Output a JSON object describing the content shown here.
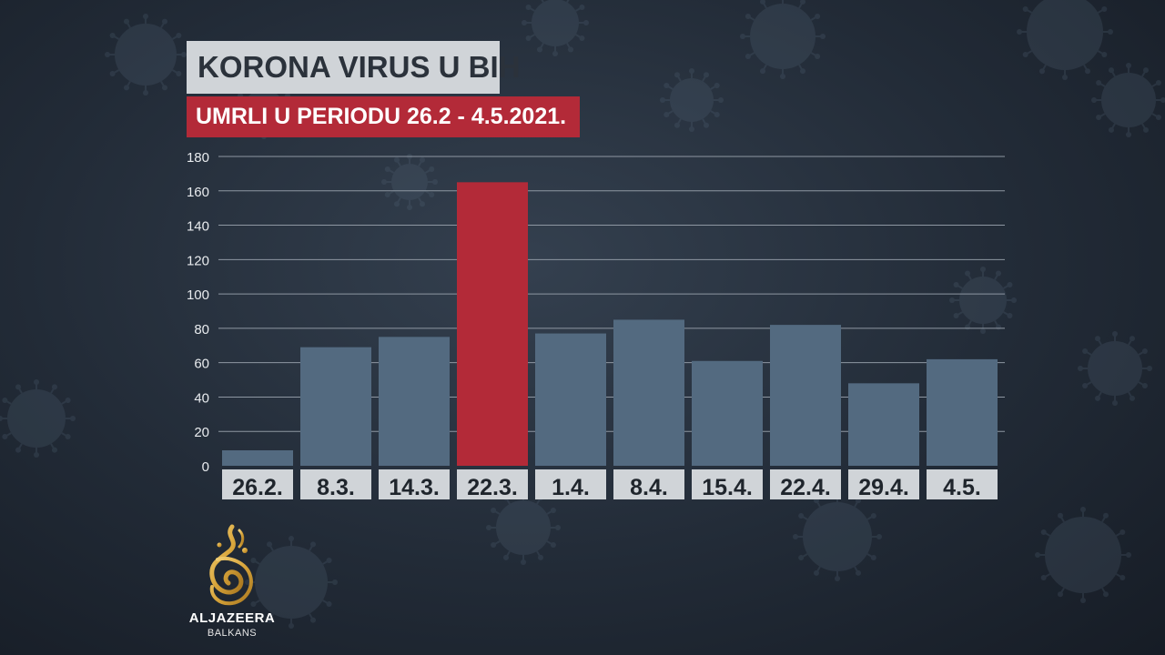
{
  "header": {
    "title": "KORONA VIRUS U BIH",
    "subtitle": "UMRLI U PERIODU 26.2 - 4.5.2021."
  },
  "colors": {
    "bar": "#536a80",
    "highlight": "#b32a38",
    "grid": "#8e97a2",
    "label_bg": "#d0d4d8",
    "label_text": "#1f252c",
    "tick_text": "#e8ebee"
  },
  "chart_data": {
    "type": "bar",
    "title": "",
    "xlabel": "",
    "ylabel": "",
    "categories": [
      "26.2.",
      "8.3.",
      "14.3.",
      "22.3.",
      "1.4.",
      "8.4.",
      "15.4.",
      "22.4.",
      "29.4.",
      "4.5."
    ],
    "values": [
      9,
      69,
      75,
      165,
      77,
      85,
      61,
      82,
      48,
      62
    ],
    "highlight_index": 3,
    "ylim": [
      0,
      180
    ],
    "yticks": [
      0,
      20,
      40,
      60,
      80,
      100,
      120,
      140,
      160,
      180
    ],
    "grid": true,
    "legend": "none"
  },
  "logo": {
    "icon": "aljazeera-logo-icon",
    "brand": "ALJAZEERA",
    "sub": "BALKANS"
  }
}
